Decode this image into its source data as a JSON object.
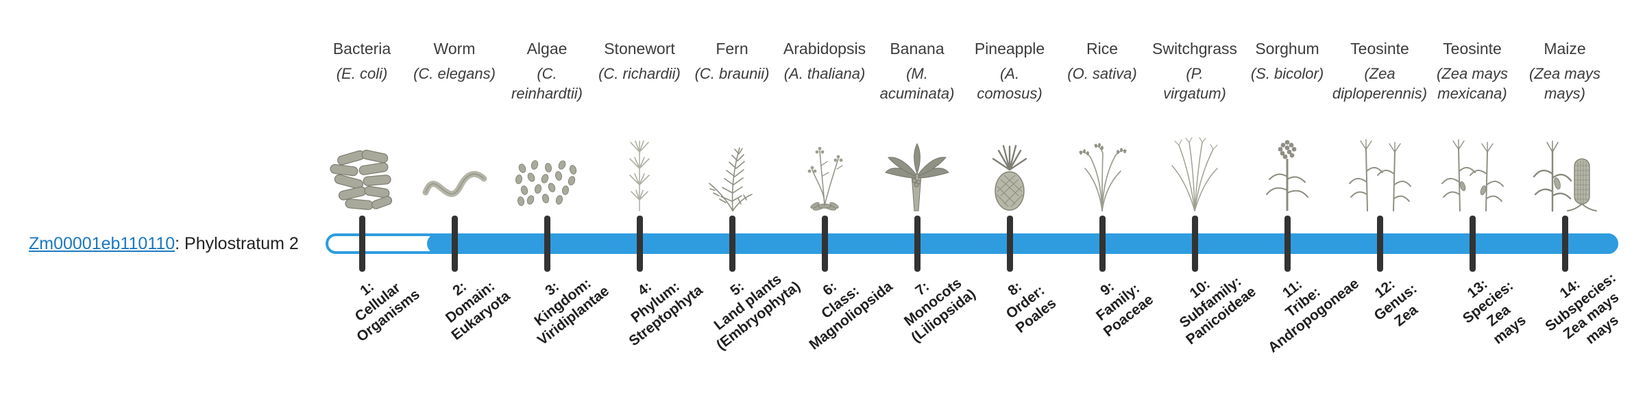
{
  "colors": {
    "bar_blue": "#2F9CE0",
    "tick": "#333333",
    "link": "#1A78C2",
    "text": "#3C3C3C",
    "label_dark": "#1F1F1F"
  },
  "gene": {
    "id": "Zm00001eb110110",
    "suffix": ": Phylostratum 2",
    "phylostratum": 2
  },
  "strata": [
    {
      "organism": "Bacteria",
      "sci": [
        "(E. coli)"
      ],
      "icon": "bacteria-icon",
      "tick": [
        "1:",
        "Cellular",
        "Organisms"
      ]
    },
    {
      "organism": "Worm",
      "sci": [
        "(C. elegans)"
      ],
      "icon": "worm-icon",
      "tick": [
        "2:",
        "Domain:",
        "Eukaryota"
      ]
    },
    {
      "organism": "Algae",
      "sci": [
        "(C.",
        "reinhardtii)"
      ],
      "icon": "algae-icon",
      "tick": [
        "3:",
        "Kingdom:",
        "Viridiplantae"
      ]
    },
    {
      "organism": "Stonewort",
      "sci": [
        "(C. richardii)"
      ],
      "icon": "stonewort-icon",
      "tick": [
        "4:",
        "Phylum:",
        "Streptophyta"
      ]
    },
    {
      "organism": "Fern",
      "sci": [
        "(C. braunii)"
      ],
      "icon": "fern-icon",
      "tick": [
        "5:",
        "Land plants",
        "(Embryophyta)"
      ]
    },
    {
      "organism": "Arabidopsis",
      "sci": [
        "(A. thaliana)"
      ],
      "icon": "arabidopsis-icon",
      "tick": [
        "6:",
        "Class:",
        "Magnoliopsida"
      ]
    },
    {
      "organism": "Banana",
      "sci": [
        "(M.",
        "acuminata)"
      ],
      "icon": "banana-icon",
      "tick": [
        "7:",
        "Monocots",
        "(Liliopsida)"
      ]
    },
    {
      "organism": "Pineapple",
      "sci": [
        "(A.",
        "comosus)"
      ],
      "icon": "pineapple-icon",
      "tick": [
        "8:",
        "Order:",
        "Poales"
      ]
    },
    {
      "organism": "Rice",
      "sci": [
        "(O. sativa)"
      ],
      "icon": "rice-icon",
      "tick": [
        "9:",
        "Family:",
        "Poaceae"
      ]
    },
    {
      "organism": "Switchgrass",
      "sci": [
        "(P.",
        "virgatum)"
      ],
      "icon": "switchgrass-icon",
      "tick": [
        "10:",
        "Subfamily:",
        "Panicoideae"
      ]
    },
    {
      "organism": "Sorghum",
      "sci": [
        "(S. bicolor)"
      ],
      "icon": "sorghum-icon",
      "tick": [
        "11:",
        "Tribe:",
        "Andropogoneae"
      ]
    },
    {
      "organism": "Teosinte",
      "sci": [
        "(Zea",
        "diploperennis)"
      ],
      "icon": "teosinte-diploperennis-icon",
      "tick": [
        "12:",
        "Genus:",
        "Zea"
      ]
    },
    {
      "organism": "Teosinte",
      "sci": [
        "(Zea mays",
        "mexicana)"
      ],
      "icon": "teosinte-mexicana-icon",
      "tick": [
        "13:",
        "Species:",
        "Zea",
        "mays"
      ]
    },
    {
      "organism": "Maize",
      "sci": [
        "(Zea mays",
        "mays)"
      ],
      "icon": "maize-icon",
      "tick": [
        "14:",
        "Subspecies:",
        "Zea mays",
        "mays"
      ]
    }
  ]
}
